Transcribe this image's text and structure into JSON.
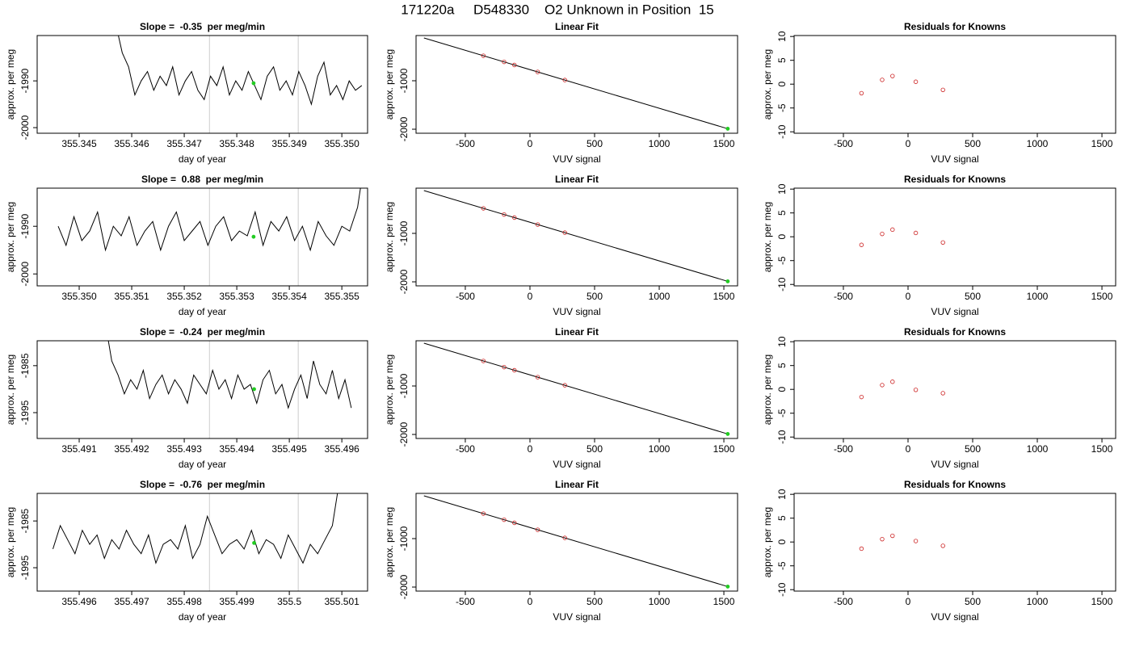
{
  "title": "171220a     D548330    O2 Unknown in Position  15",
  "chart_data": [
    {
      "type": "line",
      "title": "Slope =  -0.35  per meg/min",
      "xlabel": "day of year",
      "ylabel": "approx. per meg",
      "xlim": [
        355.3442,
        355.35049
      ],
      "ylim": [
        -2001.2,
        -1980.3
      ],
      "xticks": [
        355.345,
        355.346,
        355.347,
        355.348,
        355.349,
        {
          "value": 355.35,
          "label": "355.350"
        }
      ],
      "yticks": [
        -1990,
        -2000
      ],
      "vlines": [
        355.34748,
        355.34917
      ],
      "vline_color": "#cccccc",
      "series": [
        {
          "style": "line",
          "color": "#000000",
          "x": [
            355.3457,
            355.34582,
            355.34594,
            355.34606,
            355.34618,
            355.3463,
            355.34642,
            355.34654,
            355.34666,
            355.34678,
            355.3469,
            355.34702,
            355.34714,
            355.34726,
            355.34738,
            355.3475,
            355.34762,
            355.34774,
            355.34786,
            355.34798,
            355.3481,
            355.34822,
            355.34834,
            355.34846,
            355.34858,
            355.3487,
            355.34882,
            355.34894,
            355.34906,
            355.34918,
            355.3493,
            355.34942,
            355.34954,
            355.34966,
            355.34978,
            355.3499,
            355.35002,
            355.35014,
            355.35026,
            355.35038
          ],
          "values": [
            -1978,
            -1984,
            -1987,
            -1993,
            -1990,
            -1988,
            -1992,
            -1989,
            -1991,
            -1987,
            -1993,
            -1990,
            -1988,
            -1992,
            -1994,
            -1989,
            -1991,
            -1987,
            -1993,
            -1990,
            -1992,
            -1988,
            -1991,
            -1994,
            -1989,
            -1987,
            -1992,
            -1990,
            -1993,
            -1988,
            -1991,
            -1995,
            -1989,
            -1986,
            -1993,
            -1991,
            -1994,
            -1990,
            -1992,
            -1991
          ]
        },
        {
          "style": "dot",
          "color": "#22cc22",
          "x": [
            355.34832
          ],
          "values": [
            -1990.5
          ]
        }
      ]
    },
    {
      "type": "scatter",
      "title": "Linear Fit",
      "xlabel": "VUV signal",
      "ylabel": "approx. per meg",
      "xlim": [
        -881,
        1606
      ],
      "ylim": [
        -2083,
        -67
      ],
      "xticks": [
        -500,
        0,
        500,
        1000,
        1500
      ],
      "yticks": [
        -1000,
        -2000
      ],
      "series": [
        {
          "style": "line",
          "color": "#000000",
          "x": [
            -820,
            1530
          ],
          "values": [
            -117,
            -1990
          ]
        },
        {
          "style": "circle",
          "color": "#cc2222",
          "x": [
            -360,
            -200,
            -120,
            60,
            270
          ],
          "values": [
            -484,
            -611,
            -675,
            -818,
            -985
          ]
        },
        {
          "style": "dot",
          "color": "#22cc22",
          "x": [
            1530
          ],
          "values": [
            -1990
          ]
        }
      ]
    },
    {
      "type": "scatter",
      "title": "Residuals for Knowns",
      "xlabel": "VUV signal",
      "ylabel": "approx. per meg",
      "xlim": [
        -881,
        1606
      ],
      "ylim": [
        -10.3,
        10.2
      ],
      "xticks": [
        -500,
        0,
        500,
        1000,
        1500
      ],
      "yticks": [
        10,
        5,
        0,
        -5,
        -10
      ],
      "series": [
        {
          "style": "circle",
          "color": "#cc2222",
          "x": [
            -360,
            -200,
            -120,
            60,
            270
          ],
          "values": [
            -1.9,
            0.9,
            1.7,
            0.5,
            -1.2
          ]
        }
      ]
    },
    {
      "type": "line",
      "title": "Slope =  0.88  per meg/min",
      "xlabel": "day of year",
      "ylabel": "approx. per meg",
      "xlim": [
        355.3492,
        355.35549
      ],
      "ylim": [
        -2002.5,
        -1982
      ],
      "xticks": [
        {
          "value": 355.35,
          "label": "355.350"
        },
        355.351,
        355.352,
        355.353,
        355.354,
        355.355
      ],
      "yticks": [
        -1990,
        -2000
      ],
      "vlines": [
        355.35248,
        355.35417
      ],
      "vline_color": "#cccccc",
      "series": [
        {
          "style": "line",
          "color": "#000000",
          "x": [
            355.3496,
            355.34975,
            355.3499,
            355.35005,
            355.3502,
            355.35035,
            355.3505,
            355.35065,
            355.3508,
            355.35095,
            355.3511,
            355.35125,
            355.3514,
            355.35155,
            355.3517,
            355.35185,
            355.352,
            355.35215,
            355.3523,
            355.35245,
            355.3526,
            355.35275,
            355.3529,
            355.35305,
            355.3532,
            355.35335,
            355.3535,
            355.35365,
            355.3538,
            355.35395,
            355.3541,
            355.35425,
            355.3544,
            355.35455,
            355.3547,
            355.35485,
            355.355,
            355.35515,
            355.3553,
            355.35545
          ],
          "values": [
            -1990,
            -1994,
            -1988,
            -1993,
            -1991,
            -1987,
            -1995,
            -1990,
            -1992,
            -1988,
            -1994,
            -1991,
            -1989,
            -1995,
            -1990,
            -1987,
            -1993,
            -1991,
            -1989,
            -1994,
            -1990,
            -1988,
            -1993,
            -1991,
            -1992,
            -1987,
            -1994,
            -1989,
            -1991,
            -1988,
            -1993,
            -1990,
            -1995,
            -1989,
            -1992,
            -1994,
            -1990,
            -1991,
            -1986,
            -1975
          ]
        },
        {
          "style": "dot",
          "color": "#22cc22",
          "x": [
            355.35332
          ],
          "values": [
            -1992.2
          ]
        }
      ]
    },
    {
      "type": "scatter",
      "title": "Linear Fit",
      "xlabel": "VUV signal",
      "ylabel": "approx. per meg",
      "xlim": [
        -881,
        1606
      ],
      "ylim": [
        -2083,
        -67
      ],
      "xticks": [
        -500,
        0,
        500,
        1000,
        1500
      ],
      "yticks": [
        -1000,
        -2000
      ],
      "series": [
        {
          "style": "line",
          "color": "#000000",
          "x": [
            -820,
            1530
          ],
          "values": [
            -117,
            -1990
          ]
        },
        {
          "style": "circle",
          "color": "#cc2222",
          "x": [
            -360,
            -200,
            -120,
            60,
            270
          ],
          "values": [
            -484,
            -611,
            -675,
            -818,
            -985
          ]
        },
        {
          "style": "dot",
          "color": "#22cc22",
          "x": [
            1530
          ],
          "values": [
            -1990
          ]
        }
      ]
    },
    {
      "type": "scatter",
      "title": "Residuals for Knowns",
      "xlabel": "VUV signal",
      "ylabel": "approx. per meg",
      "xlim": [
        -881,
        1606
      ],
      "ylim": [
        -10.3,
        10.2
      ],
      "xticks": [
        -500,
        0,
        500,
        1000,
        1500
      ],
      "yticks": [
        10,
        5,
        0,
        -5,
        -10
      ],
      "series": [
        {
          "style": "circle",
          "color": "#cc2222",
          "x": [
            -360,
            -200,
            -120,
            60,
            270
          ],
          "values": [
            -1.7,
            0.6,
            1.5,
            0.8,
            -1.2
          ]
        }
      ]
    },
    {
      "type": "line",
      "title": "Slope =  -0.24  per meg/min",
      "xlabel": "day of year",
      "ylabel": "approx. per meg",
      "xlim": [
        355.4902,
        355.49649
      ],
      "ylim": [
        -2000.5,
        -1979.7
      ],
      "xticks": [
        355.491,
        355.492,
        355.493,
        355.494,
        355.495,
        355.496
      ],
      "yticks": [
        -1985,
        -1995
      ],
      "vlines": [
        355.49348,
        355.49517
      ],
      "vline_color": "#cccccc",
      "series": [
        {
          "style": "line",
          "color": "#000000",
          "x": [
            355.4915,
            355.49162,
            355.49174,
            355.49186,
            355.49198,
            355.4921,
            355.49222,
            355.49234,
            355.49246,
            355.49258,
            355.4927,
            355.49282,
            355.49294,
            355.49306,
            355.49318,
            355.4933,
            355.49342,
            355.49354,
            355.49366,
            355.49378,
            355.4939,
            355.49402,
            355.49414,
            355.49426,
            355.49438,
            355.4945,
            355.49462,
            355.49474,
            355.49486,
            355.49498,
            355.4951,
            355.49522,
            355.49534,
            355.49546,
            355.49558,
            355.4957,
            355.49582,
            355.49594,
            355.49606,
            355.49618
          ],
          "values": [
            -1976,
            -1984,
            -1987,
            -1991,
            -1988,
            -1990,
            -1986,
            -1992,
            -1989,
            -1987,
            -1991,
            -1988,
            -1990,
            -1993,
            -1987,
            -1989,
            -1991,
            -1986,
            -1990,
            -1988,
            -1992,
            -1987,
            -1990,
            -1989,
            -1993,
            -1988,
            -1986,
            -1991,
            -1989,
            -1994,
            -1990,
            -1987,
            -1992,
            -1984,
            -1989,
            -1991,
            -1986,
            -1992,
            -1988,
            -1994
          ]
        },
        {
          "style": "dot",
          "color": "#22cc22",
          "x": [
            355.49433
          ],
          "values": [
            -1990
          ]
        }
      ]
    },
    {
      "type": "scatter",
      "title": "Linear Fit",
      "xlabel": "VUV signal",
      "ylabel": "approx. per meg",
      "xlim": [
        -881,
        1606
      ],
      "ylim": [
        -2083,
        -67
      ],
      "xticks": [
        -500,
        0,
        500,
        1000,
        1500
      ],
      "yticks": [
        -1000,
        -2000
      ],
      "series": [
        {
          "style": "line",
          "color": "#000000",
          "x": [
            -820,
            1530
          ],
          "values": [
            -117,
            -1990
          ]
        },
        {
          "style": "circle",
          "color": "#cc2222",
          "x": [
            -360,
            -200,
            -120,
            60,
            270
          ],
          "values": [
            -484,
            -611,
            -675,
            -818,
            -985
          ]
        },
        {
          "style": "dot",
          "color": "#22cc22",
          "x": [
            1530
          ],
          "values": [
            -1990
          ]
        }
      ]
    },
    {
      "type": "scatter",
      "title": "Residuals for Knowns",
      "xlabel": "VUV signal",
      "ylabel": "approx. per meg",
      "xlim": [
        -881,
        1606
      ],
      "ylim": [
        -10.3,
        10.2
      ],
      "xticks": [
        -500,
        0,
        500,
        1000,
        1500
      ],
      "yticks": [
        10,
        5,
        0,
        -5,
        -10
      ],
      "series": [
        {
          "style": "circle",
          "color": "#cc2222",
          "x": [
            -360,
            -200,
            -120,
            60,
            270
          ],
          "values": [
            -1.6,
            0.9,
            1.6,
            -0.1,
            -0.8
          ]
        }
      ]
    },
    {
      "type": "line",
      "title": "Slope =  -0.76  per meg/min",
      "xlabel": "day of year",
      "ylabel": "approx. per meg",
      "xlim": [
        355.4952,
        355.50149
      ],
      "ylim": [
        -2000,
        -1979.1
      ],
      "xticks": [
        355.496,
        355.497,
        355.498,
        355.499,
        355.5,
        355.501
      ],
      "yticks": [
        -1985,
        -1995
      ],
      "vlines": [
        355.49848,
        355.50017
      ],
      "vline_color": "#cccccc",
      "series": [
        {
          "style": "line",
          "color": "#000000",
          "x": [
            355.4955,
            355.49564,
            355.49578,
            355.49592,
            355.49606,
            355.4962,
            355.49634,
            355.49648,
            355.49662,
            355.49676,
            355.4969,
            355.49704,
            355.49718,
            355.49732,
            355.49746,
            355.4976,
            355.49774,
            355.49788,
            355.49802,
            355.49816,
            355.4983,
            355.49844,
            355.49858,
            355.49872,
            355.49886,
            355.499,
            355.49914,
            355.49928,
            355.49942,
            355.49956,
            355.4997,
            355.49984,
            355.49998,
            355.50012,
            355.50026,
            355.5004,
            355.50054,
            355.50068,
            355.50082,
            355.50096
          ],
          "values": [
            -1991,
            -1986,
            -1989,
            -1992,
            -1987,
            -1990,
            -1988,
            -1993,
            -1989,
            -1991,
            -1987,
            -1990,
            -1992,
            -1988,
            -1994,
            -1990,
            -1989,
            -1991,
            -1986,
            -1993,
            -1990,
            -1984,
            -1988,
            -1992,
            -1990,
            -1989,
            -1991,
            -1987,
            -1992,
            -1989,
            -1990,
            -1993,
            -1988,
            -1991,
            -1994,
            -1990,
            -1992,
            -1989,
            -1986,
            -1976
          ]
        },
        {
          "style": "dot",
          "color": "#22cc22",
          "x": [
            355.49933
          ],
          "values": [
            -1989.7
          ]
        }
      ]
    },
    {
      "type": "scatter",
      "title": "Linear Fit",
      "xlabel": "VUV signal",
      "ylabel": "approx. per meg",
      "xlim": [
        -881,
        1606
      ],
      "ylim": [
        -2083,
        -67
      ],
      "xticks": [
        -500,
        0,
        500,
        1000,
        1500
      ],
      "yticks": [
        -1000,
        -2000
      ],
      "series": [
        {
          "style": "line",
          "color": "#000000",
          "x": [
            -820,
            1530
          ],
          "values": [
            -117,
            -1990
          ]
        },
        {
          "style": "circle",
          "color": "#cc2222",
          "x": [
            -360,
            -200,
            -120,
            60,
            270
          ],
          "values": [
            -484,
            -611,
            -675,
            -818,
            -985
          ]
        },
        {
          "style": "dot",
          "color": "#22cc22",
          "x": [
            1530
          ],
          "values": [
            -1990
          ]
        }
      ]
    },
    {
      "type": "scatter",
      "title": "Residuals for Knowns",
      "xlabel": "VUV signal",
      "ylabel": "approx. per meg",
      "xlim": [
        -881,
        1606
      ],
      "ylim": [
        -10.3,
        10.2
      ],
      "xticks": [
        -500,
        0,
        500,
        1000,
        1500
      ],
      "yticks": [
        10,
        5,
        0,
        -5,
        -10
      ],
      "series": [
        {
          "style": "circle",
          "color": "#cc2222",
          "x": [
            -360,
            -200,
            -120,
            60,
            270
          ],
          "values": [
            -1.4,
            0.6,
            1.3,
            0.2,
            -0.8
          ]
        }
      ]
    }
  ]
}
